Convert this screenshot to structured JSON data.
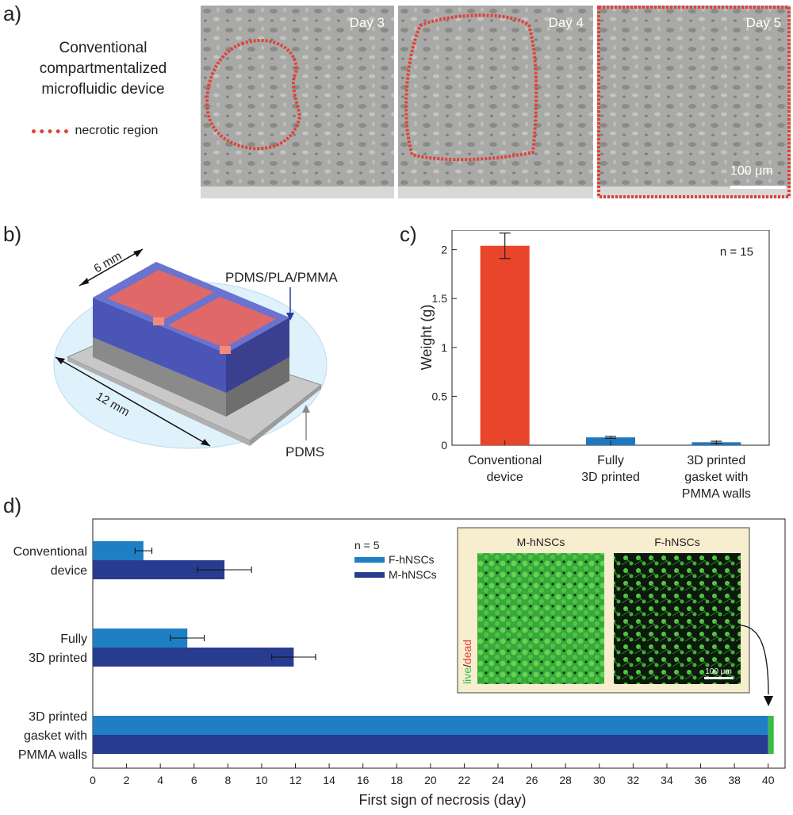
{
  "panels": {
    "a": {
      "letter": "a)",
      "description_lines": [
        "Conventional",
        "compartmentalized",
        "microfluidic device"
      ],
      "legend_label": "necrotic region",
      "days": [
        "Day 3",
        "Day 4",
        "Day 5"
      ],
      "scale_bar": "100 μm"
    },
    "b": {
      "letter": "b)",
      "dim_top": "6 mm",
      "dim_side": "12 mm",
      "label_top_material": "PDMS/PLA/PMMA",
      "label_base_material": "PDMS"
    },
    "c": {
      "letter": "c)"
    },
    "d": {
      "letter": "d)",
      "inset_titles": [
        "M-hNSCs",
        "F-hNSCs"
      ],
      "inset_side_live": "live",
      "inset_side_sep": "/",
      "inset_side_dead": "dead",
      "inset_scale": "100 μm"
    }
  },
  "colors": {
    "necrotic": "#e0413a",
    "conventional_bar": "#e8452a",
    "blue_bar": "#1f77bf",
    "f_hnsc": "#1f7fc4",
    "m_hnsc": "#283c8f",
    "live_green": "#3dbb4a",
    "inset_bg": "#f7edcf"
  },
  "chart_data": [
    {
      "id": "c",
      "type": "bar",
      "categories": [
        [
          "Conventional",
          "device"
        ],
        [
          "Fully",
          "3D printed"
        ],
        [
          "3D printed",
          "gasket with",
          "PMMA walls"
        ]
      ],
      "values": [
        2.04,
        0.08,
        0.03
      ],
      "errors": [
        0.13,
        0.01,
        0.01
      ],
      "ylabel": "Weight (g)",
      "ylim": [
        0,
        2.2
      ],
      "yticks": [
        0,
        0.5,
        1,
        1.5,
        2
      ],
      "ytick_labels": [
        "0",
        "0.5",
        "1",
        "1.5",
        "2"
      ],
      "annotation": "n = 15",
      "bar_colors": [
        "#e8452a",
        "#1f77bf",
        "#1f77bf"
      ]
    },
    {
      "id": "d",
      "type": "bar",
      "orientation": "horizontal",
      "categories": [
        [
          "Conventional",
          "device"
        ],
        [
          "Fully",
          "3D printed"
        ],
        [
          "3D printed",
          "gasket with",
          "PMMA walls"
        ]
      ],
      "series": [
        {
          "name": "F-hNSCs",
          "values": [
            3.0,
            5.6,
            40.0
          ],
          "errors": [
            0.5,
            1.0,
            0
          ]
        },
        {
          "name": "M-hNSCs",
          "values": [
            7.8,
            11.9,
            40.0
          ],
          "errors": [
            1.6,
            1.3,
            0
          ]
        }
      ],
      "xlabel": "First sign of necrosis (day)",
      "xlim": [
        0,
        41
      ],
      "xticks": [
        0,
        2,
        4,
        6,
        8,
        10,
        12,
        14,
        16,
        18,
        20,
        22,
        24,
        26,
        28,
        30,
        32,
        34,
        36,
        38,
        40
      ],
      "annotation": "n = 5"
    }
  ]
}
